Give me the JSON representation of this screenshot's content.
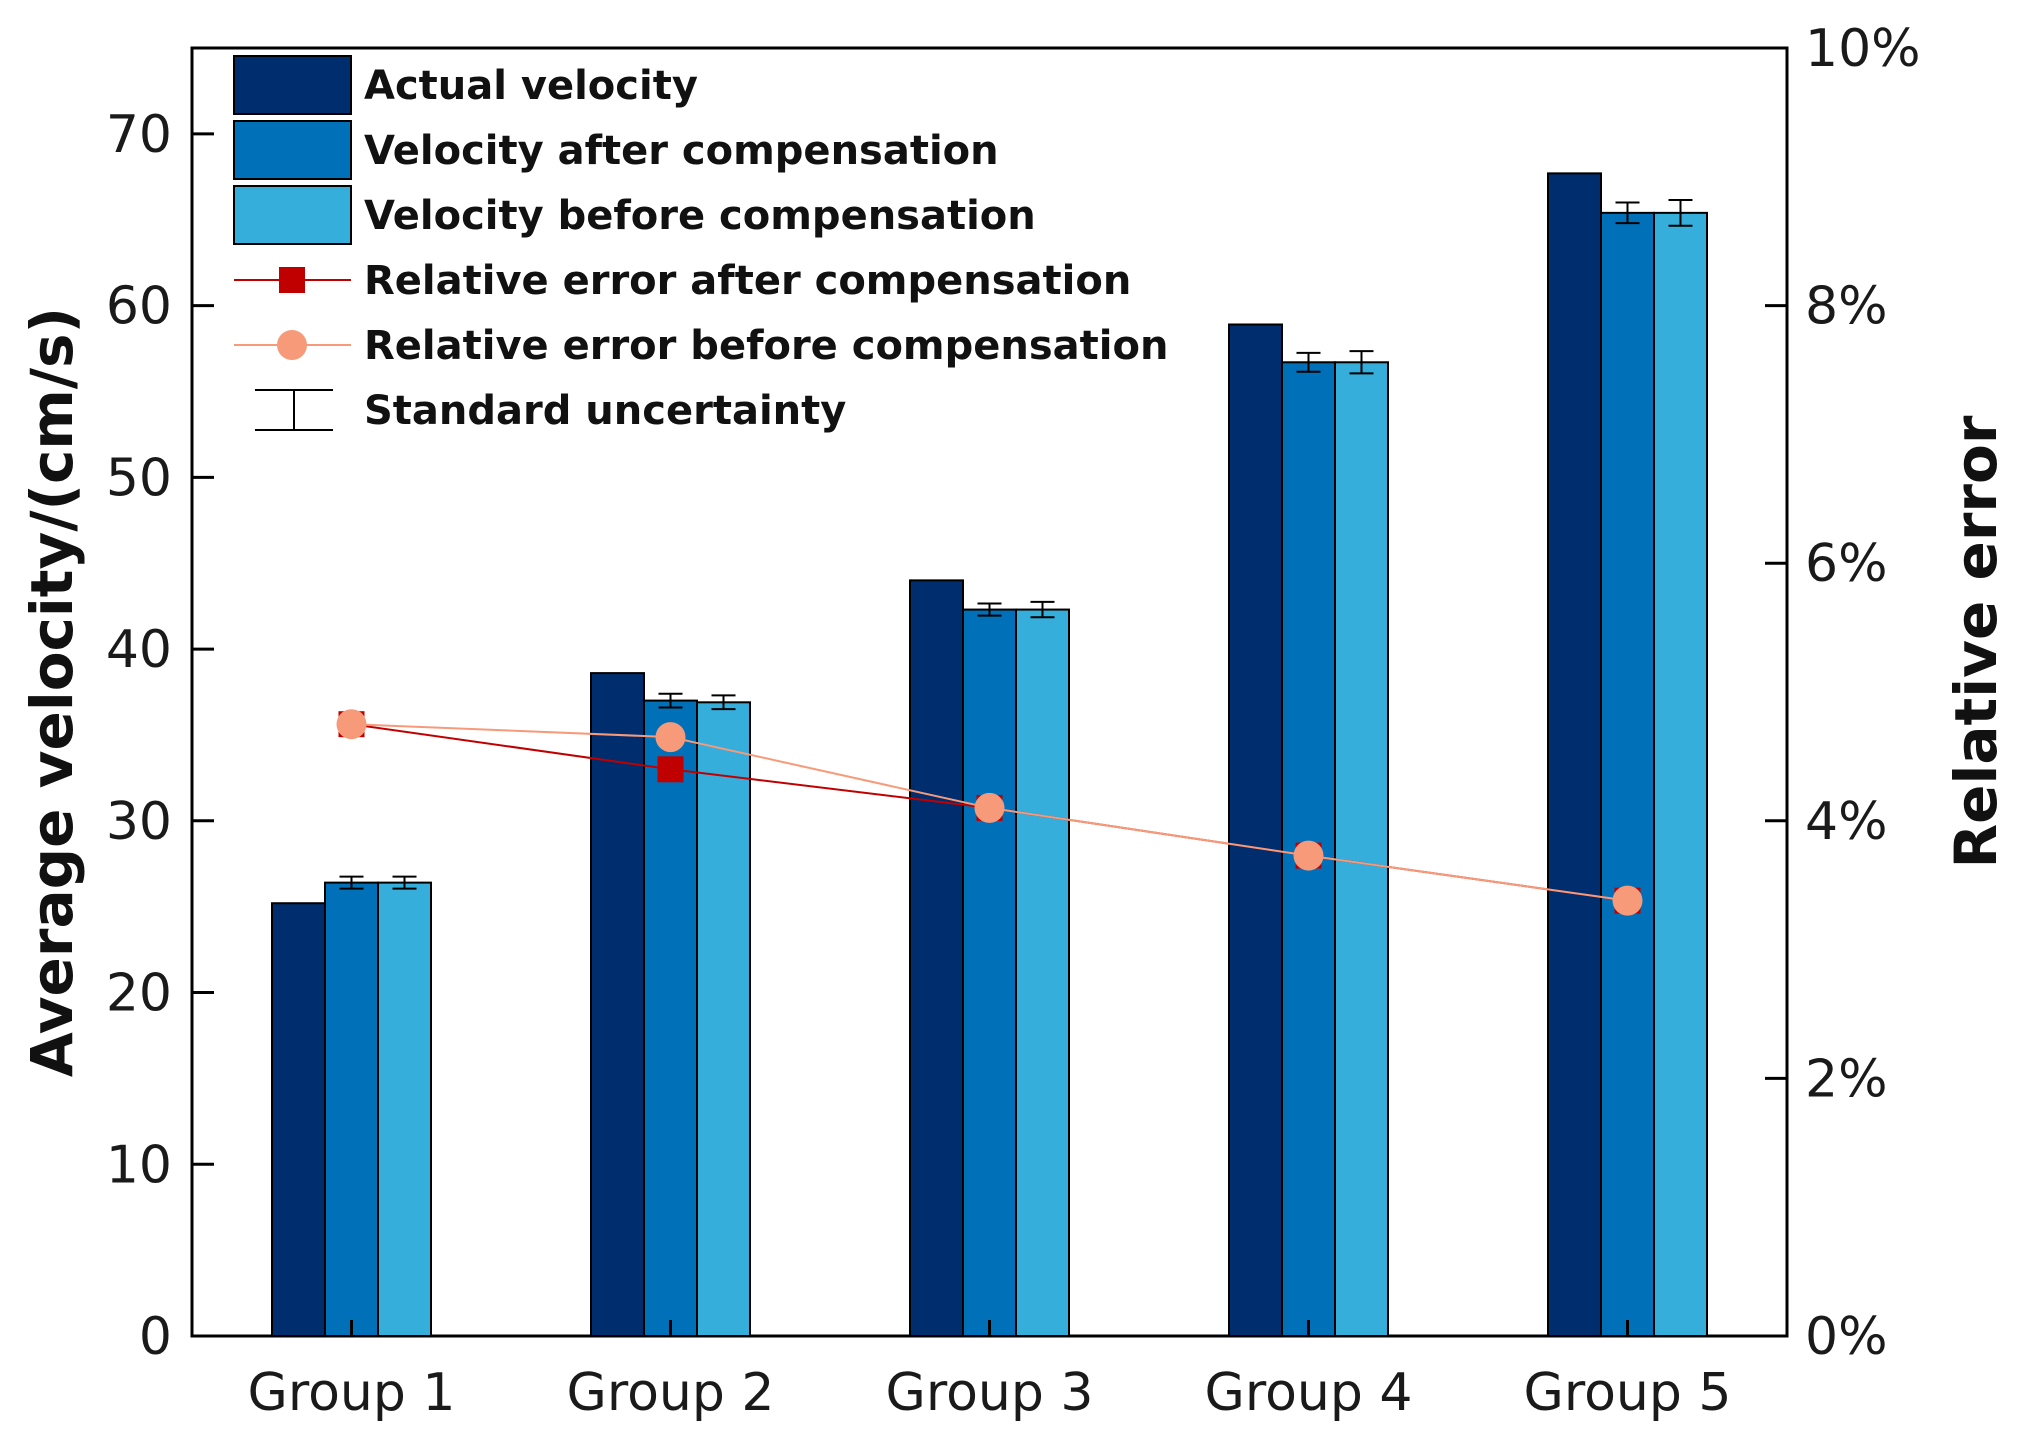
{
  "chart_data": {
    "type": "bar",
    "categories": [
      "Group 1",
      "Group 2",
      "Group 3",
      "Group 4",
      "Group 5"
    ],
    "series": [
      {
        "name": "Actual velocity",
        "color": "#002d6e",
        "values": [
          25.2,
          38.6,
          44.0,
          58.9,
          67.7
        ]
      },
      {
        "name": "Velocity after compensation",
        "color": "#0071b9",
        "values": [
          26.4,
          37.0,
          42.3,
          56.7,
          65.4
        ],
        "error": [
          0.35,
          0.4,
          0.35,
          0.55,
          0.6
        ]
      },
      {
        "name": "Velocity before compensation",
        "color": "#35aedb",
        "values": [
          26.4,
          36.9,
          42.3,
          56.7,
          65.4
        ],
        "error": [
          0.35,
          0.4,
          0.45,
          0.65,
          0.75
        ]
      }
    ],
    "line_series": [
      {
        "name": "Relative error after compensation",
        "color": "#c00000",
        "marker": "square",
        "values": [
          4.75,
          4.4,
          4.1,
          3.73,
          3.38
        ]
      },
      {
        "name": "Relative error before compensation",
        "color": "#f79a7a",
        "marker": "circle",
        "values": [
          4.75,
          4.65,
          4.1,
          3.73,
          3.38
        ]
      }
    ],
    "error_legend_label": "Standard uncertainty",
    "ylabel": "Average velocity/(cm/s)",
    "y2label": "Relative error",
    "ylim": [
      0,
      75
    ],
    "y2lim": [
      0,
      10
    ],
    "yticks": [
      "0",
      "10",
      "20",
      "30",
      "40",
      "50",
      "60",
      "70"
    ],
    "y2ticks": [
      "0%",
      "2%",
      "4%",
      "6%",
      "8%",
      "10%"
    ],
    "legend_position": "top-left"
  }
}
